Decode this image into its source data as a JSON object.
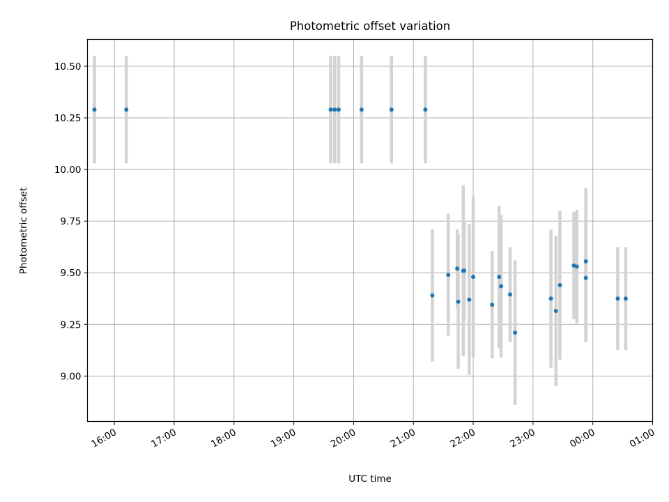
{
  "chart_data": {
    "type": "scatter",
    "title": "Photometric offset variation",
    "xlabel": "UTC time",
    "ylabel": "Photometric offset",
    "grid": true,
    "x_axis_kind": "time",
    "xlim": [
      "15:33",
      "01:00"
    ],
    "ylim": [
      8.78,
      10.63
    ],
    "x_ticks": [
      "16:00",
      "17:00",
      "18:00",
      "19:00",
      "20:00",
      "21:00",
      "22:00",
      "23:00",
      "00:00",
      "01:00"
    ],
    "y_ticks": [
      "9.00",
      "9.25",
      "9.50",
      "9.75",
      "10.00",
      "10.25",
      "10.50"
    ],
    "colors": {
      "point": "#1f77b4",
      "errorbar": "#d3d3d3",
      "grid": "#b0b0b0"
    },
    "series": [
      {
        "points": [
          {
            "x": "15:40",
            "y": 10.29,
            "err": 0.26
          },
          {
            "x": "16:12",
            "y": 10.29,
            "err": 0.26
          },
          {
            "x": "19:37",
            "y": 10.29,
            "err": 0.26
          },
          {
            "x": "19:41",
            "y": 10.29,
            "err": 0.26
          },
          {
            "x": "19:45",
            "y": 10.29,
            "err": 0.26
          },
          {
            "x": "20:08",
            "y": 10.29,
            "err": 0.26
          },
          {
            "x": "20:38",
            "y": 10.29,
            "err": 0.26
          },
          {
            "x": "21:12",
            "y": 10.29,
            "err": 0.26
          },
          {
            "x": "21:19",
            "y": 9.39,
            "err": 0.32
          },
          {
            "x": "21:35",
            "y": 9.49,
            "err": 0.295
          },
          {
            "x": "21:44",
            "y": 9.52,
            "err": 0.19
          },
          {
            "x": "21:45",
            "y": 9.36,
            "err": 0.325
          },
          {
            "x": "21:50",
            "y": 9.51,
            "err": 0.415
          },
          {
            "x": "21:51",
            "y": 9.51,
            "err": 0.24
          },
          {
            "x": "21:56",
            "y": 9.37,
            "err": 0.365
          },
          {
            "x": "22:00",
            "y": 9.48,
            "err": 0.39
          },
          {
            "x": "22:19",
            "y": 9.345,
            "err": 0.26
          },
          {
            "x": "22:26",
            "y": 9.48,
            "err": 0.345
          },
          {
            "x": "22:28",
            "y": 9.435,
            "err": 0.345
          },
          {
            "x": "22:37",
            "y": 9.395,
            "err": 0.23
          },
          {
            "x": "22:42",
            "y": 9.21,
            "err": 0.35
          },
          {
            "x": "23:18",
            "y": 9.375,
            "err": 0.335
          },
          {
            "x": "23:23",
            "y": 9.315,
            "err": 0.365
          },
          {
            "x": "23:27",
            "y": 9.44,
            "err": 0.36
          },
          {
            "x": "23:41",
            "y": 9.535,
            "err": 0.26
          },
          {
            "x": "23:44",
            "y": 9.53,
            "err": 0.275
          },
          {
            "x": "23:53",
            "y": 9.555,
            "err": 0.355
          },
          {
            "x": "23:53",
            "y": 9.475,
            "err": 0.31
          },
          {
            "x": "00:25",
            "y": 9.375,
            "err": 0.25
          },
          {
            "x": "00:33",
            "y": 9.375,
            "err": 0.25
          }
        ]
      }
    ]
  }
}
